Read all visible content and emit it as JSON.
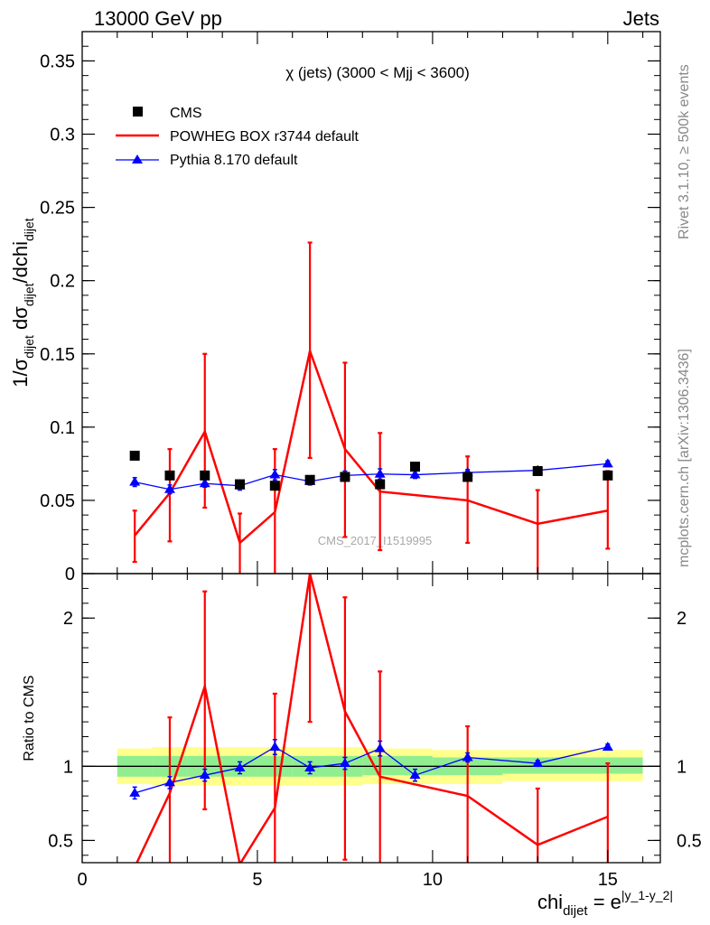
{
  "header": {
    "left": "13000 GeV pp",
    "right": "Jets"
  },
  "side_labels": {
    "rivet": "Rivet 3.1.10, ≥ 500k events",
    "mcplots": "mcplots.cern.ch [arXiv:1306.3436]"
  },
  "chart_data": [
    {
      "type": "scatter",
      "panel": "main",
      "title": "χ (jets) (3000 < Mjj < 3600)",
      "ylabel": "1/σdijet dσdijet/dchidijet",
      "ylabel_parts": {
        "a": "1/σ",
        "a_sub": "dijet",
        "b": " dσ",
        "b_sub": "dijet",
        "c": "/dchi",
        "c_sub": "dijet"
      },
      "xlim": [
        0,
        16.5
      ],
      "ylim": [
        0,
        0.37
      ],
      "xticks": [
        "0",
        "5",
        "10",
        "15"
      ],
      "xtick_values": [
        0,
        5,
        10,
        15
      ],
      "yticks": [
        "0",
        "0.05",
        "0.1",
        "0.15",
        "0.2",
        "0.25",
        "0.3",
        "0.35"
      ],
      "ytick_values": [
        0,
        0.05,
        0.1,
        0.15,
        0.2,
        0.25,
        0.3,
        0.35
      ],
      "watermark": "CMS_2017_I1519995",
      "legend_position": "top-left",
      "series": [
        {
          "name": "CMS",
          "kind": "markers",
          "color": "#000000",
          "x": [
            1.5,
            2.5,
            3.5,
            4.5,
            5.5,
            6.5,
            7.5,
            8.5,
            9.5,
            11,
            13,
            15
          ],
          "y": [
            0.0805,
            0.067,
            0.067,
            0.061,
            0.06,
            0.064,
            0.066,
            0.061,
            0.073,
            0.066,
            0.07,
            0.067
          ]
        },
        {
          "name": "POWHEG BOX r3744 default",
          "kind": "line",
          "color": "#ff0000",
          "x": [
            1.5,
            2.5,
            3.5,
            4.5,
            5.5,
            6.5,
            7.5,
            8.5,
            11,
            13,
            15
          ],
          "y": [
            0.026,
            0.055,
            0.097,
            0.021,
            0.042,
            0.152,
            0.085,
            0.056,
            0.05,
            0.034,
            0.043
          ],
          "err_low": [
            0.008,
            0.022,
            0.045,
            0.0,
            0.0,
            0.079,
            0.025,
            0.016,
            0.021,
            0.0,
            0.017
          ],
          "err_high": [
            0.043,
            0.085,
            0.15,
            0.041,
            0.085,
            0.226,
            0.144,
            0.096,
            0.08,
            0.057,
            0.07
          ]
        },
        {
          "name": "Pythia 8.170 default",
          "kind": "line-markers",
          "color": "#0000ff",
          "x": [
            1.5,
            2.5,
            3.5,
            4.5,
            5.5,
            6.5,
            7.5,
            8.5,
            9.5,
            11,
            13,
            15
          ],
          "y": [
            0.0625,
            0.0575,
            0.0615,
            0.06,
            0.0675,
            0.063,
            0.067,
            0.068,
            0.0675,
            0.069,
            0.0705,
            0.075
          ],
          "err_low": [
            0.0595,
            0.0545,
            0.059,
            0.057,
            0.064,
            0.0605,
            0.064,
            0.0645,
            0.065,
            0.067,
            0.069,
            0.073
          ],
          "err_high": [
            0.0655,
            0.0605,
            0.064,
            0.063,
            0.071,
            0.0655,
            0.07,
            0.0715,
            0.07,
            0.071,
            0.072,
            0.077
          ]
        }
      ]
    },
    {
      "type": "line",
      "panel": "ratio",
      "ylabel": "Ratio to CMS",
      "xlabel_parts": {
        "base": "chi",
        "sub": "dijet",
        "eq": " = e",
        "sup": "|y_1-y_2|"
      },
      "xlim": [
        0,
        16.5
      ],
      "ylim": [
        0.35,
        2.3
      ],
      "xticks": [
        "0",
        "5",
        "10",
        "15"
      ],
      "xtick_values": [
        0,
        5,
        10,
        15
      ],
      "yticks": [
        "0.5",
        "1",
        "2"
      ],
      "ytick_values": [
        0.5,
        1,
        2
      ],
      "reference": 1,
      "bands": [
        {
          "color": "#ffff8c",
          "x0": [
            1.0,
            2.0,
            3.0,
            4.0,
            5.0,
            6.0,
            7.0,
            8.0,
            10.0,
            12.0,
            14.0
          ],
          "x1": [
            2.0,
            3.0,
            4.0,
            5.0,
            6.0,
            7.0,
            8.0,
            10.0,
            12.0,
            14.0,
            16.0
          ],
          "low": [
            0.88,
            0.87,
            0.87,
            0.87,
            0.87,
            0.87,
            0.87,
            0.88,
            0.88,
            0.9,
            0.9
          ],
          "high": [
            1.12,
            1.13,
            1.13,
            1.13,
            1.13,
            1.13,
            1.13,
            1.12,
            1.11,
            1.11,
            1.11
          ]
        },
        {
          "color": "#90ee90",
          "x0": [
            1.0,
            2.0,
            3.0,
            4.0,
            5.0,
            6.0,
            7.0,
            8.0,
            10.0,
            12.0,
            14.0
          ],
          "x1": [
            2.0,
            3.0,
            4.0,
            5.0,
            6.0,
            7.0,
            8.0,
            10.0,
            12.0,
            14.0,
            16.0
          ],
          "low": [
            0.93,
            0.93,
            0.93,
            0.93,
            0.93,
            0.93,
            0.93,
            0.94,
            0.94,
            0.95,
            0.95
          ],
          "high": [
            1.07,
            1.07,
            1.07,
            1.07,
            1.07,
            1.07,
            1.07,
            1.07,
            1.06,
            1.06,
            1.06
          ]
        }
      ],
      "series": [
        {
          "name": "POWHEG BOX r3744 default",
          "color": "#ff0000",
          "x": [
            1.5,
            2.5,
            3.5,
            4.5,
            5.5,
            6.5,
            7.5,
            8.5,
            11,
            13,
            15
          ],
          "y": [
            0.32,
            0.82,
            1.54,
            0.34,
            0.72,
            2.3,
            1.37,
            0.93,
            0.8,
            0.47,
            0.66
          ],
          "err_low": [
            0.0,
            0.32,
            0.71,
            0.0,
            0.0,
            1.3,
            0.37,
            0.0,
            0.0,
            0.0,
            0.0
          ],
          "err_high": [
            0.0,
            1.33,
            2.18,
            0.0,
            1.49,
            2.3,
            2.14,
            1.64,
            1.27,
            0.85,
            1.02
          ]
        },
        {
          "name": "Pythia 8.170 default",
          "color": "#0000ff",
          "x": [
            1.5,
            2.5,
            3.5,
            4.5,
            5.5,
            6.5,
            7.5,
            8.5,
            9.5,
            11,
            13,
            15
          ],
          "y": [
            0.82,
            0.89,
            0.94,
            0.99,
            1.13,
            0.99,
            1.02,
            1.12,
            0.94,
            1.06,
            1.02,
            1.13
          ],
          "err_low": [
            0.78,
            0.85,
            0.9,
            0.95,
            1.08,
            0.95,
            0.98,
            1.07,
            0.9,
            1.03,
            1.0,
            1.11
          ],
          "err_high": [
            0.86,
            0.93,
            0.98,
            1.03,
            1.18,
            1.03,
            1.06,
            1.17,
            0.98,
            1.09,
            1.04,
            1.15
          ]
        }
      ]
    }
  ]
}
